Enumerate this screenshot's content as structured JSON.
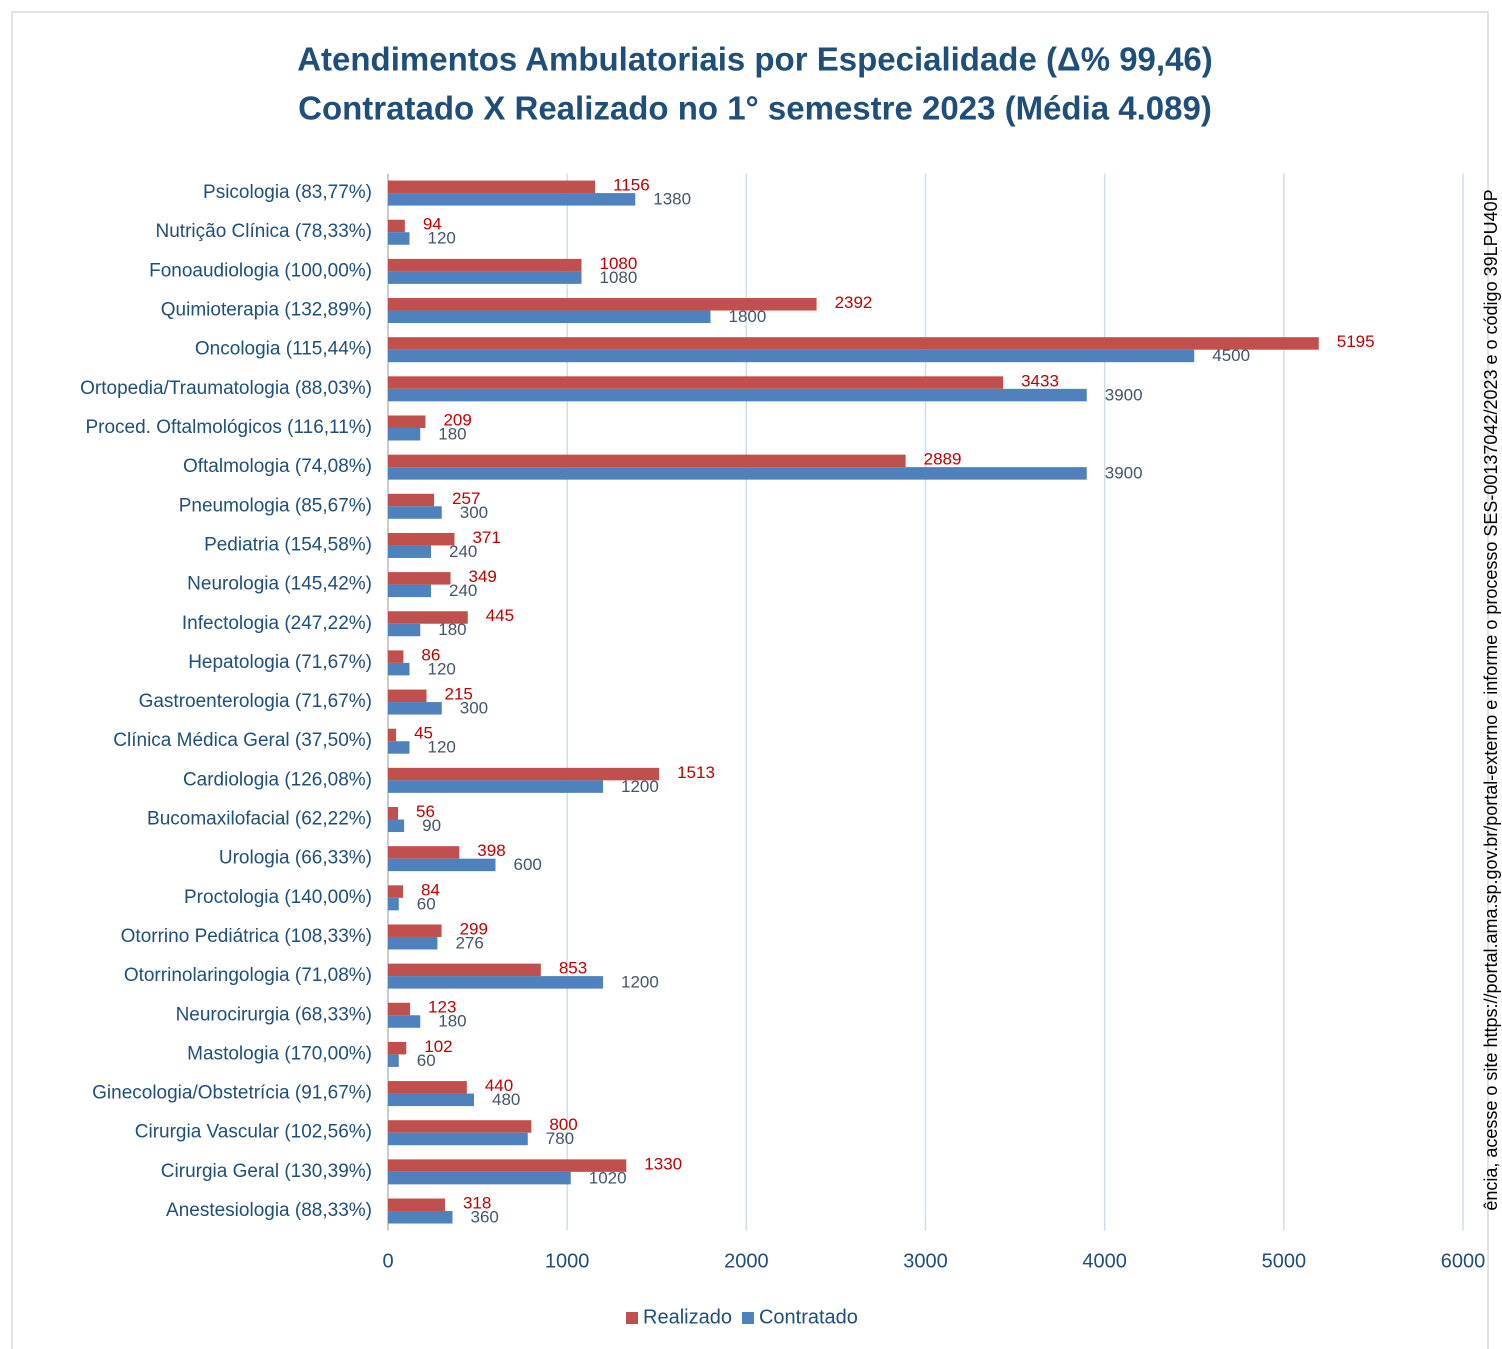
{
  "chart_data": {
    "type": "hbar",
    "title": "Atendimentos Ambulatoriais por Especialidade (Δ% 99,46)",
    "subtitle": "Contratado X Realizado no 1° semestre 2023 (Média 4.089)",
    "categories": [
      "Psicologia (83,77%)",
      "Nutrição Clínica (78,33%)",
      "Fonoaudiologia (100,00%)",
      "Quimioterapia (132,89%)",
      "Oncologia (115,44%)",
      "Ortopedia/Traumatologia (88,03%)",
      "Proced. Oftalmológicos (116,11%)",
      "Oftalmologia (74,08%)",
      "Pneumologia (85,67%)",
      "Pediatria (154,58%)",
      "Neurologia (145,42%)",
      "Infectologia (247,22%)",
      "Hepatologia (71,67%)",
      "Gastroenterologia (71,67%)",
      "Clínica Médica Geral (37,50%)",
      "Cardiologia (126,08%)",
      "Bucomaxilofacial (62,22%)",
      "Urologia (66,33%)",
      "Proctologia (140,00%)",
      "Otorrino Pediátrica (108,33%)",
      "Otorrinolaringologia (71,08%)",
      "Neurocirurgia (68,33%)",
      "Mastologia (170,00%)",
      "Ginecologia/Obstetrícia (91,67%)",
      "Cirurgia Vascular (102,56%)",
      "Cirurgia Geral (130,39%)",
      "Anestesiologia (88,33%)"
    ],
    "series": [
      {
        "name": "Realizado",
        "color": "#c0504d",
        "label_color": "#c00000",
        "values": [
          1156,
          94,
          1080,
          2392,
          5195,
          3433,
          209,
          2889,
          257,
          371,
          349,
          445,
          86,
          215,
          45,
          1513,
          56,
          398,
          84,
          299,
          853,
          123,
          102,
          440,
          800,
          1330,
          318
        ]
      },
      {
        "name": "Contratado",
        "color": "#4f81bd",
        "label_color": "#44546a",
        "values": [
          1380,
          120,
          1080,
          1800,
          4500,
          3900,
          180,
          3900,
          300,
          240,
          240,
          180,
          120,
          300,
          120,
          1200,
          90,
          600,
          60,
          276,
          1200,
          180,
          60,
          480,
          780,
          1020,
          360
        ]
      }
    ],
    "xlim": [
      0,
      6000
    ],
    "xticks": [
      0,
      1000,
      2000,
      3000,
      4000,
      5000,
      6000
    ],
    "grid": true,
    "legend": "bottom",
    "annotation": "ência, acesse o site https://portal.ama.sp.gov.br/portal-externo e informe o processo SES-00137042/2023 e o código 39LPU40P"
  }
}
